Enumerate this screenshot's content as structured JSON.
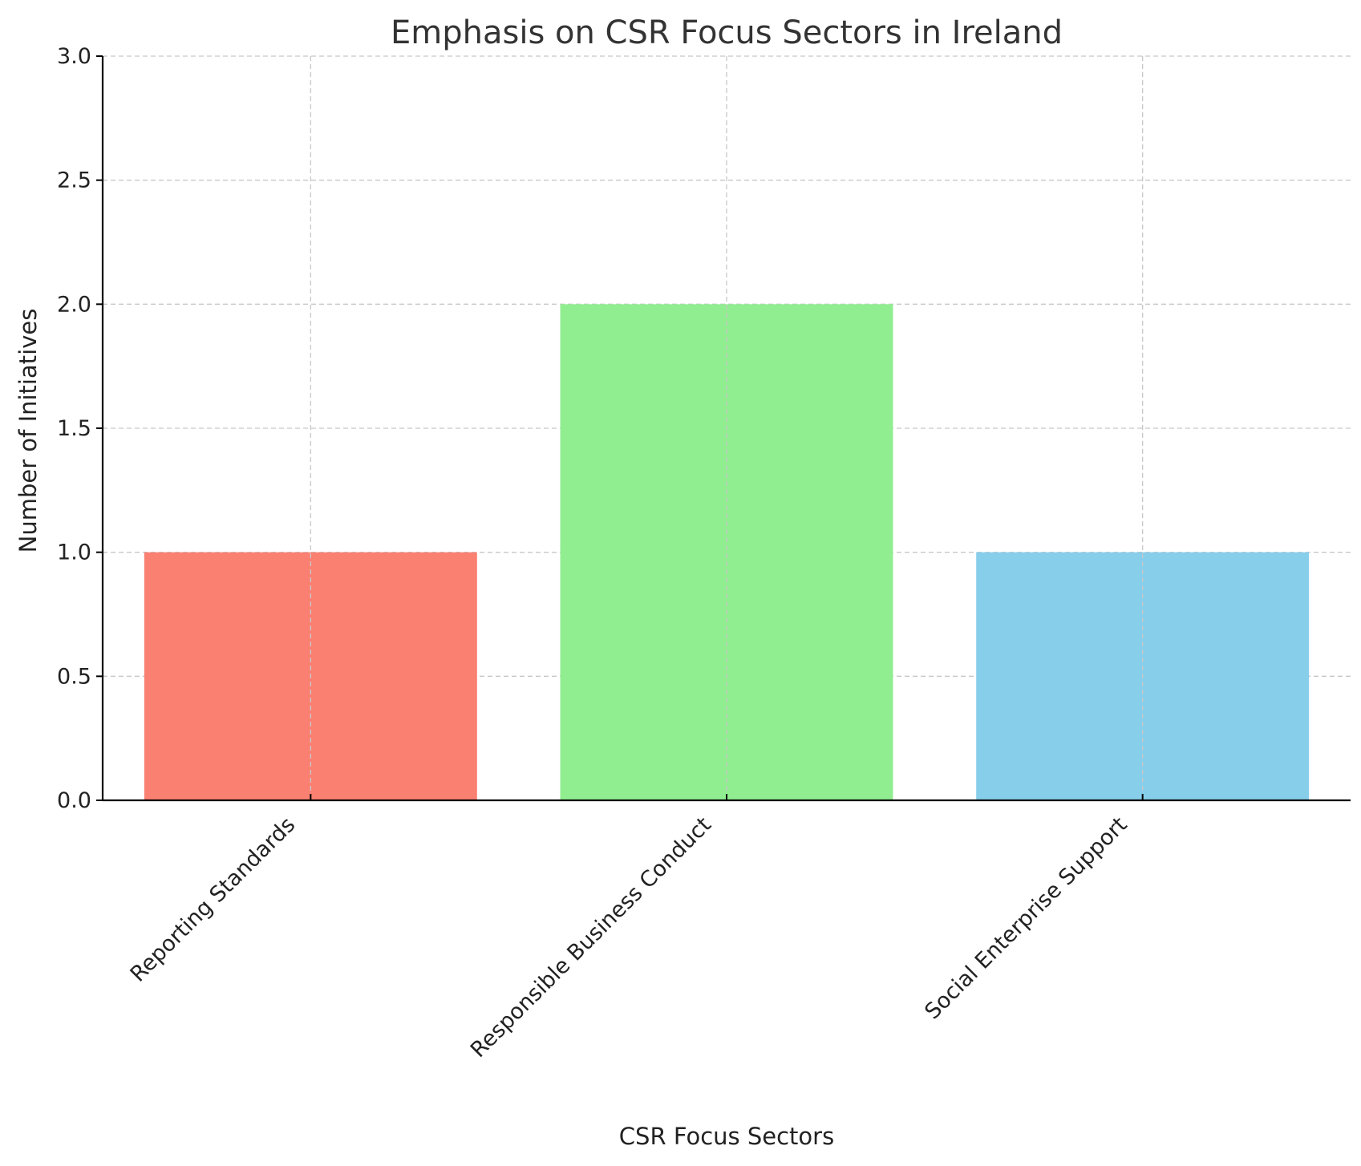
{
  "chart_data": {
    "type": "bar",
    "title": "Emphasis on CSR Focus Sectors in Ireland",
    "xlabel": "CSR Focus Sectors",
    "ylabel": "Number of Initiatives",
    "categories": [
      "Reporting Standards",
      "Responsible Business Conduct",
      "Social Enterprise Support"
    ],
    "values": [
      1,
      2,
      1
    ],
    "colors": [
      "#fa8072",
      "#90ee90",
      "#87ceeb"
    ],
    "ylim": [
      0,
      3.0
    ],
    "yticks": [
      "0.0",
      "0.5",
      "1.0",
      "1.5",
      "2.0",
      "2.5",
      "3.0"
    ],
    "ytick_values": [
      0,
      0.5,
      1.0,
      1.5,
      2.0,
      2.5,
      3.0
    ],
    "grid": true,
    "legend": "none"
  }
}
